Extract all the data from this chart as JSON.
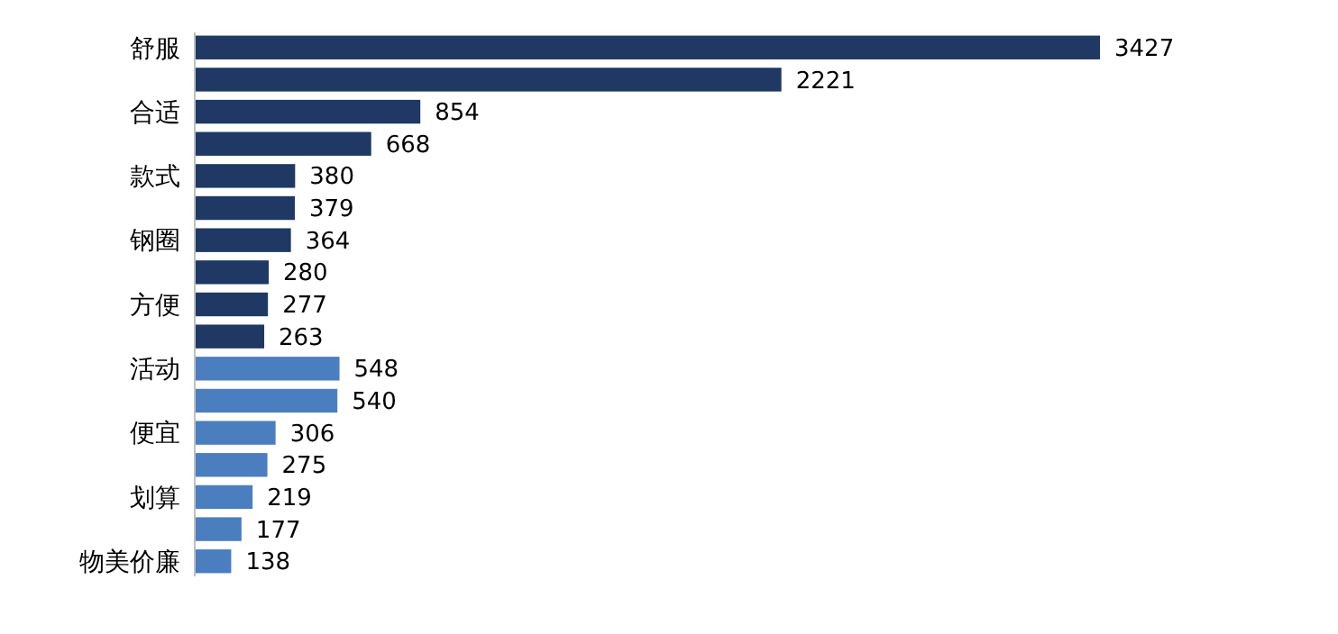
{
  "chart_data": {
    "type": "bar",
    "orientation": "horizontal",
    "data_labels": true,
    "categories": [
      "舒服",
      null,
      "合适",
      null,
      "款式",
      null,
      "钢圈",
      null,
      "方便",
      null,
      "活动",
      null,
      "便宜",
      null,
      "划算",
      null,
      "物美价廉"
    ],
    "values": [
      3427,
      2221,
      854,
      668,
      380,
      379,
      364,
      280,
      277,
      263,
      548,
      540,
      306,
      275,
      219,
      177,
      138
    ],
    "colors": [
      "#1f3864",
      "#1f3864",
      "#1f3864",
      "#1f3864",
      "#1f3864",
      "#1f3864",
      "#1f3864",
      "#1f3864",
      "#1f3864",
      "#1f3864",
      "#4a7ebf",
      "#4a7ebf",
      "#4a7ebf",
      "#4a7ebf",
      "#4a7ebf",
      "#4a7ebf",
      "#4a7ebf"
    ]
  }
}
